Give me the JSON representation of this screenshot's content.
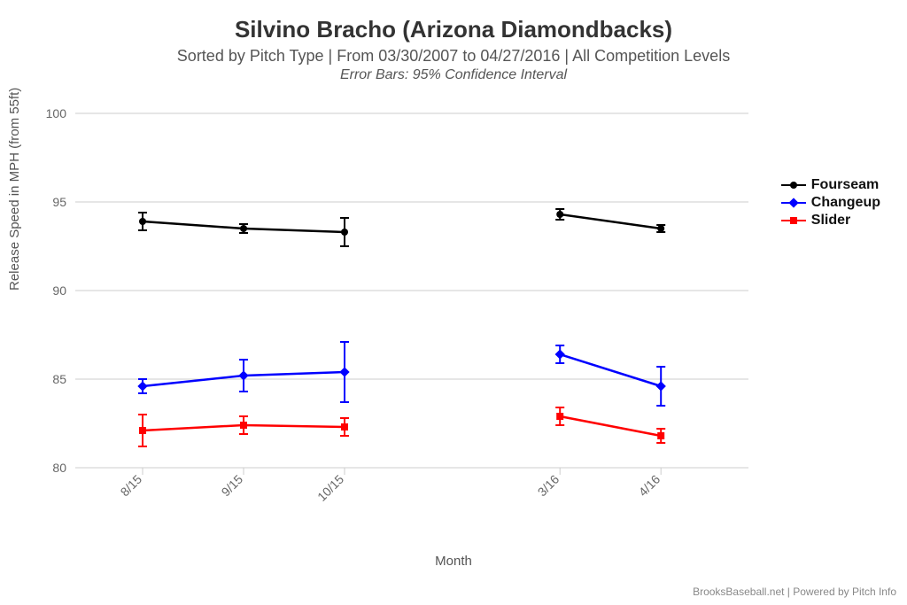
{
  "title": "Silvino Bracho (Arizona Diamondbacks)",
  "subtitle": "Sorted by Pitch Type | From 03/30/2007 to 04/27/2016 | All Competition Levels",
  "error_note": "Error Bars: 95% Confidence Interval",
  "y_axis_label": "Release Speed in MPH (from 55ft)",
  "x_axis_label": "Month",
  "attribution": "BrooksBaseball.net | Powered by Pitch Info",
  "chart": {
    "type": "line-errorbar",
    "background_color": "#ffffff",
    "plot_background": "#ffffff",
    "grid_color": "#cccccc",
    "axis_line_color": "#cccccc",
    "tick_color": "#cccccc",
    "label_color": "#666666",
    "ylim": [
      80,
      100
    ],
    "ytick_step": 5,
    "yticks": [
      80,
      85,
      90,
      95,
      100
    ],
    "categories": [
      "8/15",
      "9/15",
      "10/15",
      "3/16",
      "4/16"
    ],
    "category_x": [
      0.1,
      0.25,
      0.4,
      0.72,
      0.87
    ],
    "title_fontsize": 26,
    "subtitle_fontsize": 18,
    "label_fontsize": 15,
    "tick_fontsize": 14,
    "tick_label_rotation": -45,
    "line_width": 2.5,
    "marker_size": 8,
    "errorbar_cap_width": 10,
    "series": [
      {
        "name": "Fourseam",
        "color": "#000000",
        "marker": "circle",
        "segments": [
          {
            "x_idx": [
              0,
              1,
              2
            ],
            "y": [
              93.9,
              93.5,
              93.3
            ],
            "err": [
              0.5,
              0.25,
              0.8
            ]
          },
          {
            "x_idx": [
              3,
              4
            ],
            "y": [
              94.3,
              93.5
            ],
            "err": [
              0.3,
              0.2
            ]
          }
        ]
      },
      {
        "name": "Changeup",
        "color": "#0000ff",
        "marker": "diamond",
        "segments": [
          {
            "x_idx": [
              0,
              1,
              2
            ],
            "y": [
              84.6,
              85.2,
              85.4
            ],
            "err": [
              0.4,
              0.9,
              1.7
            ]
          },
          {
            "x_idx": [
              3,
              4
            ],
            "y": [
              86.4,
              84.6
            ],
            "err": [
              0.5,
              1.1
            ]
          }
        ]
      },
      {
        "name": "Slider",
        "color": "#ff0000",
        "marker": "square",
        "segments": [
          {
            "x_idx": [
              0,
              1,
              2
            ],
            "y": [
              82.1,
              82.4,
              82.3
            ],
            "err": [
              0.9,
              0.5,
              0.5
            ]
          },
          {
            "x_idx": [
              3,
              4
            ],
            "y": [
              82.9,
              81.8
            ],
            "err": [
              0.5,
              0.4
            ]
          }
        ]
      }
    ]
  },
  "legend": {
    "items": [
      {
        "label": "Fourseam",
        "color": "#000000",
        "marker": "circle"
      },
      {
        "label": "Changeup",
        "color": "#0000ff",
        "marker": "diamond"
      },
      {
        "label": "Slider",
        "color": "#ff0000",
        "marker": "square"
      }
    ]
  }
}
